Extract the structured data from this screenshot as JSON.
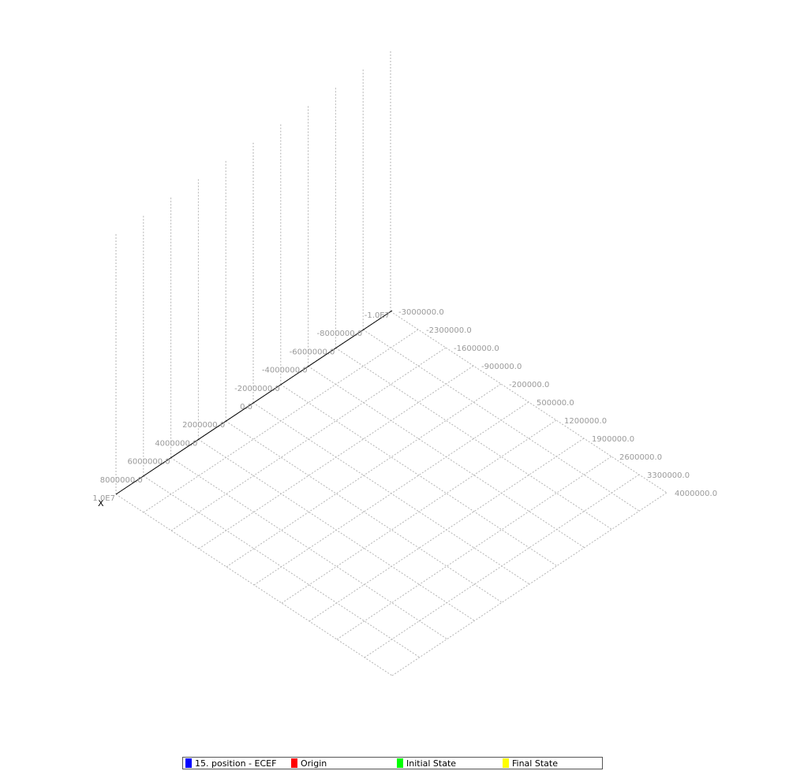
{
  "chart_data": {
    "type": "scatter",
    "projection": "3d",
    "title": "",
    "axes": {
      "x": {
        "label": "X",
        "range": [
          10000000,
          -10000000
        ],
        "tick_labels": [
          "1.0E7",
          "8000000.0",
          "6000000.0",
          "4000000.0",
          "2000000.0",
          "0.0",
          "-2000000.0",
          "-4000000.0",
          "-6000000.0",
          "-8000000.0",
          "-1.0E7"
        ]
      },
      "y": {
        "label": "",
        "range": [
          -3000000,
          4000000
        ],
        "tick_labels": [
          "-3000000.0",
          "-2300000.0",
          "-1600000.0",
          "-900000.0",
          "-200000.0",
          "500000.0",
          "1200000.0",
          "1900000.0",
          "2600000.0",
          "3300000.0",
          "4000000.0"
        ]
      },
      "z": {
        "label": ""
      }
    },
    "grid": true,
    "series": [
      {
        "name": "15. position - ECEF",
        "color": "#0000ff",
        "points": []
      },
      {
        "name": "Origin",
        "color": "#ff0000",
        "points": []
      },
      {
        "name": "Initial State",
        "color": "#00ff00",
        "points": []
      },
      {
        "name": "Final State",
        "color": "#ffff00",
        "points": []
      }
    ],
    "legend_position": "bottom"
  }
}
